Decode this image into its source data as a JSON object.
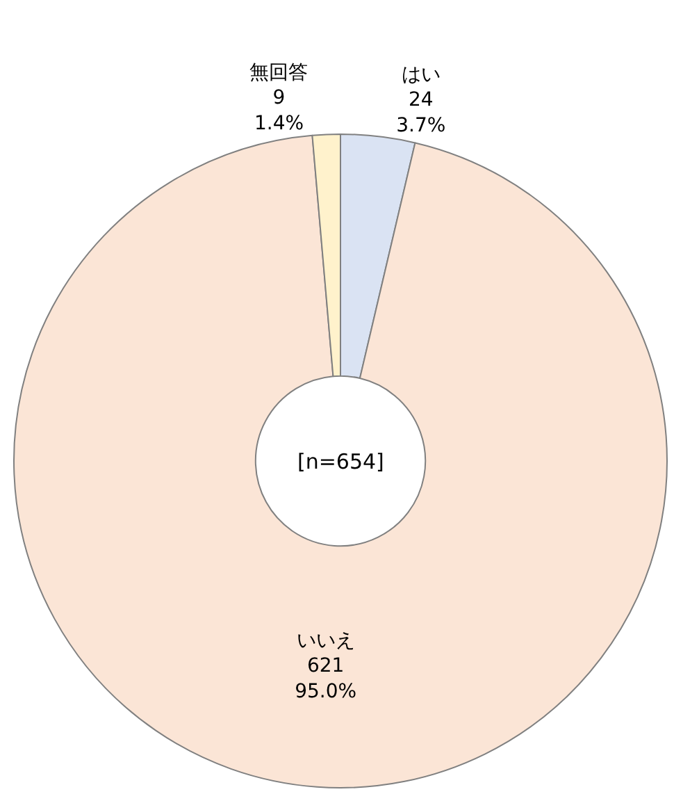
{
  "chart_data": {
    "type": "donut",
    "categories": [
      "はい",
      "いいえ",
      "無回答"
    ],
    "values": [
      24,
      621,
      9
    ],
    "value_labels": [
      "24\n3.7%",
      "621\n95.0%",
      "9\n1.4%"
    ],
    "colors": [
      "#dae3f3",
      "#fbe5d6",
      "#fff2cc"
    ],
    "annotations": [
      "[n=654]"
    ],
    "legend": false
  }
}
